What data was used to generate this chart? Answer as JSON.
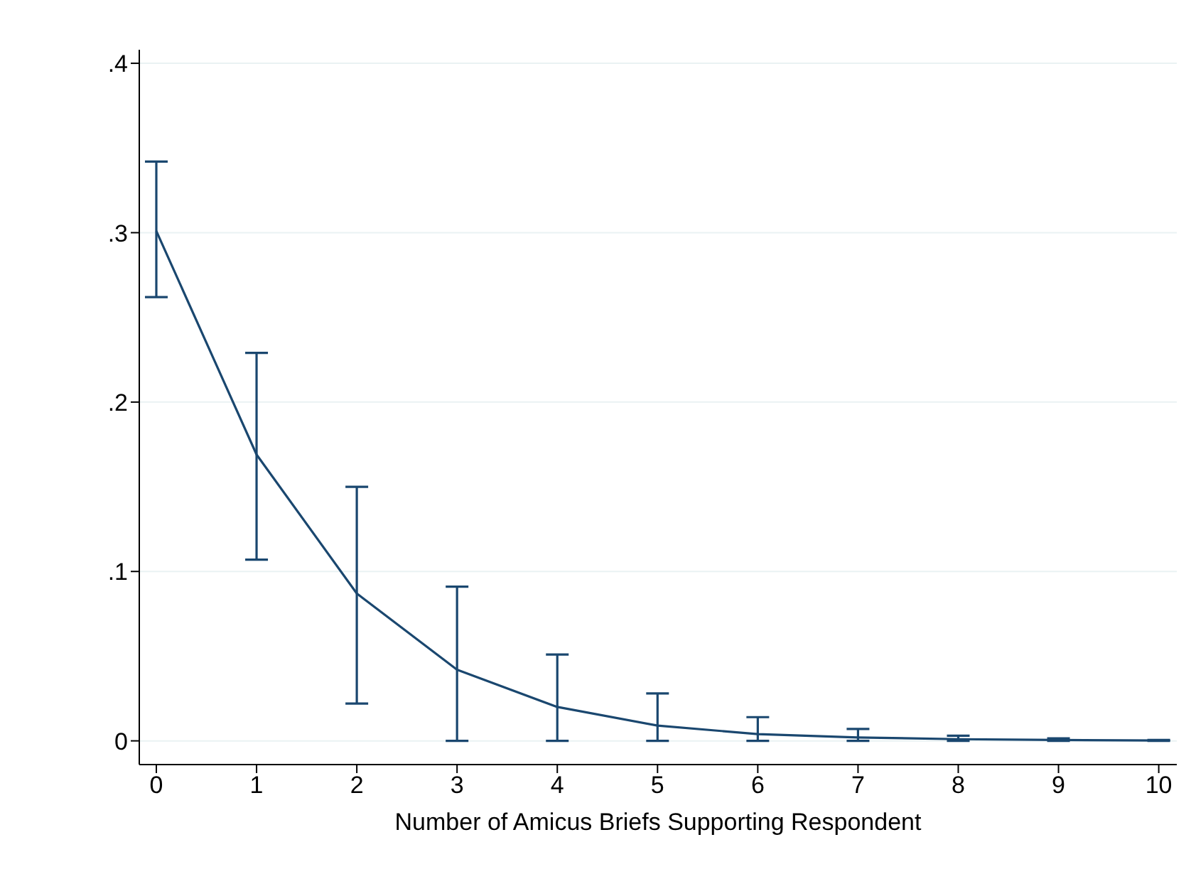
{
  "chart_data": {
    "type": "line",
    "xlabel": "Number of Amicus Briefs Supporting Respondent",
    "x": [
      0,
      1,
      2,
      3,
      4,
      5,
      6,
      7,
      8,
      9,
      10
    ],
    "series": [
      {
        "color": "#1a476f",
        "values": [
          0.301,
          0.169,
          0.087,
          0.042,
          0.02,
          0.009,
          0.004,
          0.002,
          0.001,
          0.0005,
          0.0002
        ],
        "errors": [
          [
            0.262,
            0.342
          ],
          [
            0.107,
            0.229
          ],
          [
            0.022,
            0.15
          ],
          [
            0,
            0.091
          ],
          [
            0,
            0.051
          ],
          [
            0,
            0.028
          ],
          [
            0,
            0.014
          ],
          [
            0,
            0.007
          ],
          [
            0,
            0.003
          ],
          [
            0,
            0.0015
          ],
          [
            0,
            0.0005
          ]
        ]
      }
    ],
    "xlim": [
      -0.17,
      10.18
    ],
    "xticks": [
      0,
      1,
      2,
      3,
      4,
      5,
      6,
      7,
      8,
      9,
      10
    ],
    "ylim": [
      -0.014,
      0.408
    ],
    "yticks": [
      {
        "value": 0,
        "label": "0"
      },
      {
        "value": 0.1,
        "label": ".1"
      },
      {
        "value": 0.2,
        "label": ".2"
      },
      {
        "value": 0.3,
        "label": ".3"
      },
      {
        "value": 0.4,
        "label": ".4"
      }
    ],
    "grid": "y",
    "legend": false,
    "marker": "none",
    "line_style": "solid"
  }
}
